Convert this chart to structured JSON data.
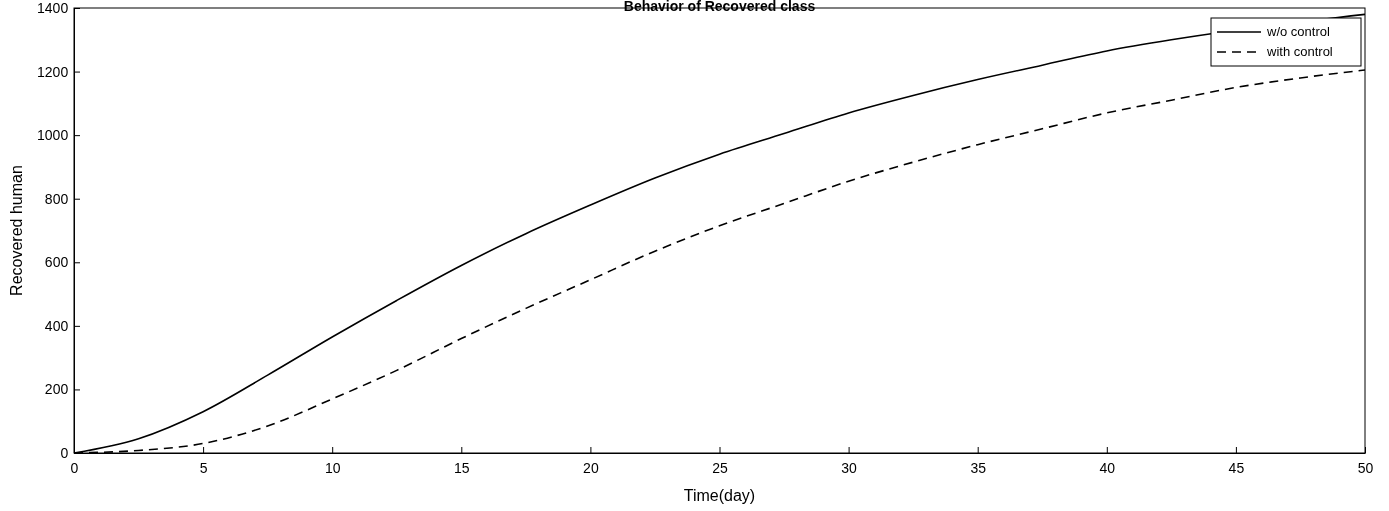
{
  "chart_data": {
    "type": "line",
    "title": "Behavior of Recovered class",
    "xlabel": "Time(day)",
    "ylabel": "Recovered human",
    "x": [
      0,
      2.5,
      5,
      7.5,
      10,
      12.5,
      15,
      17.5,
      20,
      22.5,
      25,
      27.5,
      30,
      32.5,
      35,
      37.5,
      40,
      42.5,
      45,
      47.5,
      50
    ],
    "series": [
      {
        "name": "w/o control",
        "color": "#000000",
        "line_style": "solid",
        "x": [
          0,
          2.5,
          5,
          7.5,
          10,
          12.5,
          15,
          17.5,
          20,
          22.5,
          25,
          27.5,
          30,
          32.5,
          35,
          37.5,
          40,
          42.5,
          45,
          50
        ],
        "values": [
          0,
          45,
          130,
          245,
          365,
          480,
          590,
          690,
          780,
          865,
          940,
          1005,
          1070,
          1125,
          1175,
          1220,
          1265,
          1300,
          1330,
          1380
        ]
      },
      {
        "name": "with control",
        "color": "#000000",
        "line_style": "dashed",
        "values": [
          0,
          8,
          30,
          85,
          170,
          260,
          360,
          455,
          545,
          635,
          715,
          785,
          855,
          915,
          970,
          1020,
          1070,
          1110,
          1150,
          1180,
          1205
        ]
      }
    ],
    "xlim": [
      0,
      50
    ],
    "xticks": [
      0,
      5,
      10,
      15,
      20,
      25,
      30,
      35,
      40,
      45,
      50
    ],
    "ylim": [
      0,
      1400
    ],
    "yticks": [
      0,
      200,
      400,
      600,
      800,
      1000,
      1200,
      1400
    ],
    "grid": false,
    "legend": "top right",
    "marker": "none"
  }
}
